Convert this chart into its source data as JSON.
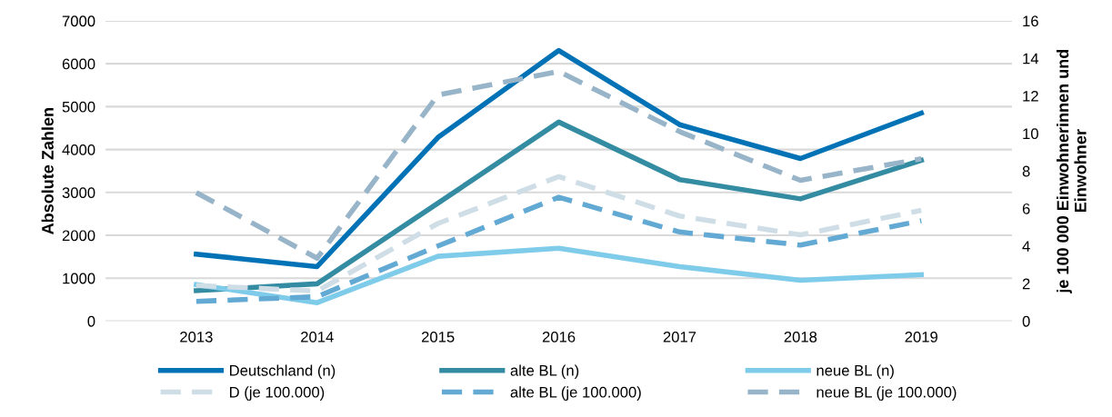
{
  "chart_data": {
    "type": "line",
    "ylabel": "Absolute Zahlen",
    "y2label": "je 100 000 Einwohnerinnen und\nEinwohner",
    "categories": [
      "2013",
      "2014",
      "2015",
      "2016",
      "2017",
      "2018",
      "2019"
    ],
    "series": [
      {
        "name": "Deutschland (n)",
        "color": "#0072b5",
        "line_style": "solid",
        "values": [
          1560,
          1270,
          4280,
          6310,
          4580,
          3790,
          4850
        ]
      },
      {
        "name": "alte BL (n)",
        "color": "#348ca3",
        "line_style": "solid",
        "values": [
          710,
          870,
          2750,
          4640,
          3300,
          2850,
          3750
        ]
      },
      {
        "name": "neue BL (n)",
        "color": "#7fcbea",
        "line_style": "solid",
        "values": [
          850,
          430,
          1510,
          1700,
          1270,
          950,
          1080
        ]
      },
      {
        "name": "D (je 100.000)",
        "color": "#cfdde6",
        "line_style": "dashed",
        "axis": "y2",
        "values": [
          1.9,
          1.6,
          5.2,
          7.7,
          5.6,
          4.6,
          5.9
        ]
      },
      {
        "name": "alte BL (je 100.000)",
        "color": "#62a9d3",
        "line_style": "dashed",
        "axis": "y2",
        "values": [
          1.05,
          1.3,
          4.0,
          6.6,
          4.75,
          4.05,
          5.35
        ]
      },
      {
        "name": "neue BL (je 100.000)",
        "color": "#98b4c8",
        "line_style": "dashed",
        "axis": "y2",
        "values": [
          6.85,
          3.35,
          12.05,
          13.3,
          10.1,
          7.5,
          8.65
        ]
      }
    ],
    "ylim": [
      0,
      7000
    ],
    "yticks": [
      0,
      1000,
      2000,
      3000,
      4000,
      5000,
      6000,
      7000
    ],
    "y2lim": [
      0,
      16
    ],
    "y2ticks": [
      0,
      2,
      4,
      6,
      8,
      10,
      12,
      14,
      16
    ],
    "grid": "y",
    "legend": "bottom",
    "marker": "none"
  }
}
